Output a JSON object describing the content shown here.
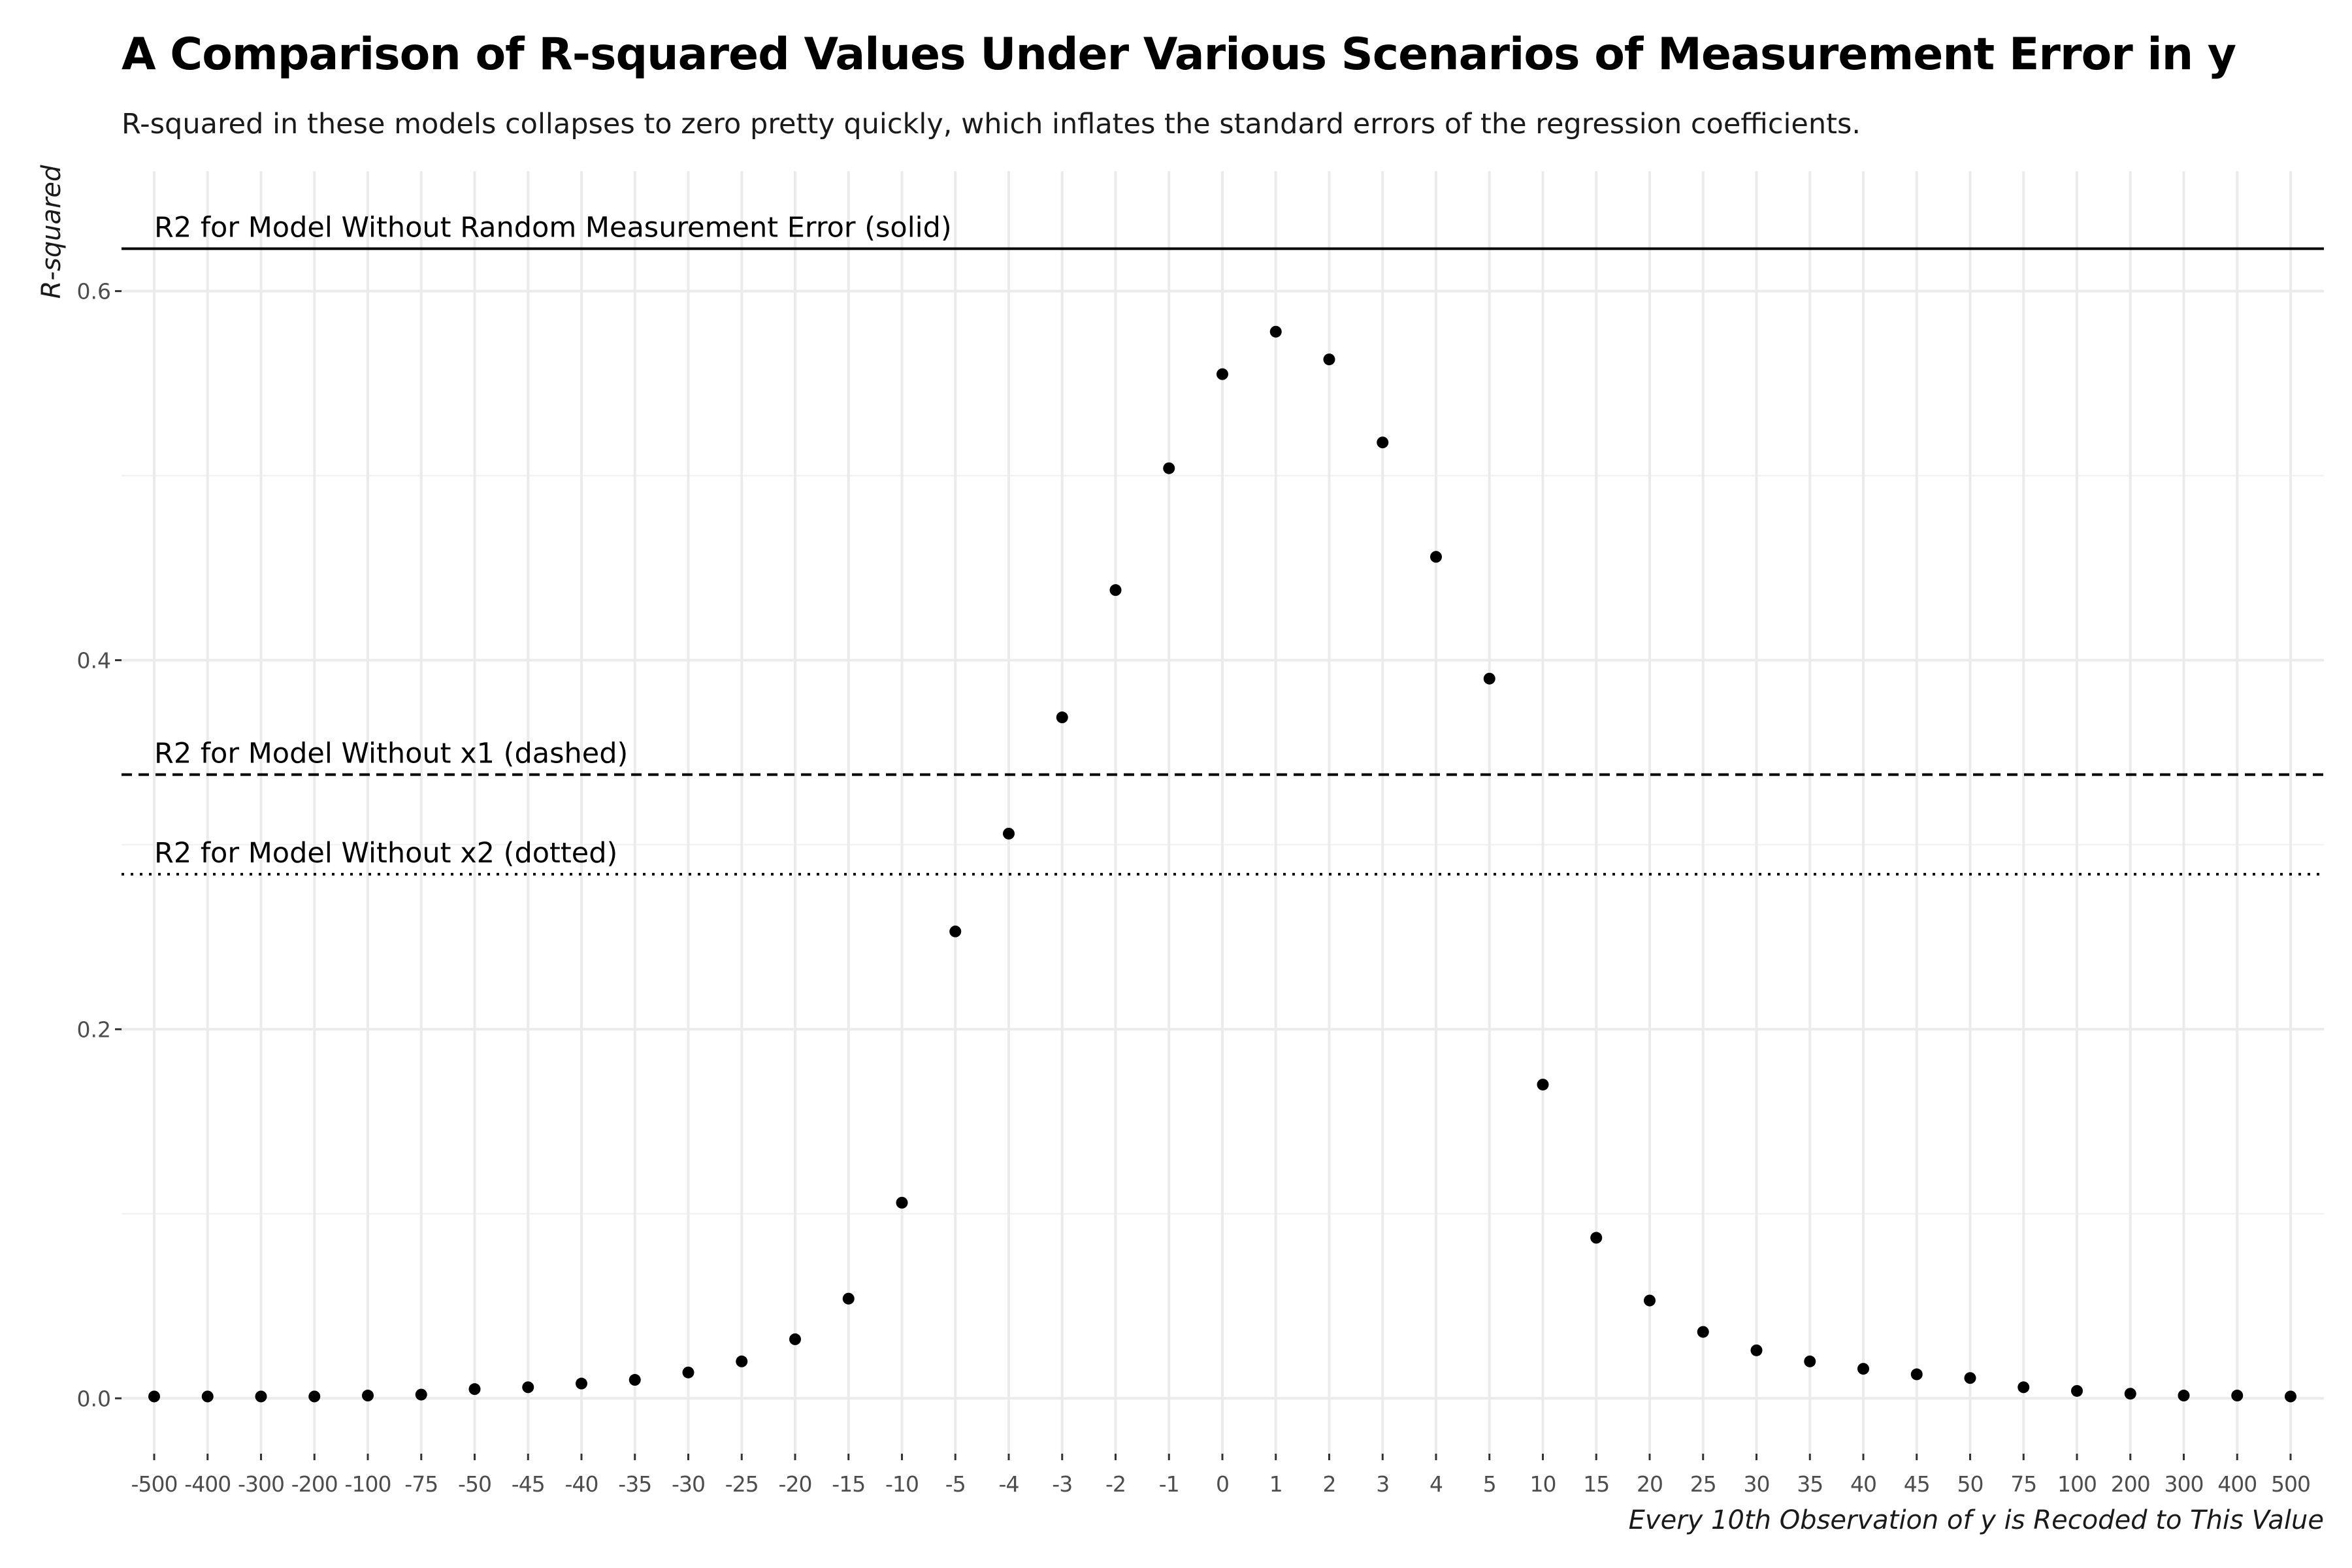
{
  "chart_data": {
    "type": "scatter",
    "title": "A Comparison of R-squared Values Under Various Scenarios of Measurement Error in y",
    "subtitle": "R-squared in these models collapses to zero pretty quickly, which inflates the standard errors of the regression coefficients.",
    "xlabel": "Every 10th Observation of y is Recoded to This Value",
    "ylabel": "R-squared",
    "categories": [
      "-500",
      "-400",
      "-300",
      "-200",
      "-100",
      "-75",
      "-50",
      "-45",
      "-40",
      "-35",
      "-30",
      "-25",
      "-20",
      "-15",
      "-10",
      "-5",
      "-4",
      "-3",
      "-2",
      "-1",
      "0",
      "1",
      "2",
      "3",
      "4",
      "5",
      "10",
      "15",
      "20",
      "25",
      "30",
      "35",
      "40",
      "45",
      "50",
      "75",
      "100",
      "200",
      "300",
      "400",
      "500"
    ],
    "values": [
      0.001,
      0.001,
      0.001,
      0.001,
      0.0015,
      0.002,
      0.005,
      0.006,
      0.008,
      0.01,
      0.014,
      0.02,
      0.032,
      0.054,
      0.106,
      0.253,
      0.306,
      0.369,
      0.438,
      0.504,
      0.555,
      0.578,
      0.563,
      0.518,
      0.456,
      0.39,
      0.17,
      0.087,
      0.053,
      0.036,
      0.026,
      0.02,
      0.016,
      0.013,
      0.011,
      0.006,
      0.004,
      0.0025,
      0.0015,
      0.0015,
      0.001
    ],
    "yticks": [
      0.0,
      0.2,
      0.4,
      0.6
    ],
    "ytick_labels": [
      "0.0",
      "0.2",
      "0.4",
      "0.6"
    ],
    "ylim": [
      -0.03,
      0.665
    ],
    "grid": true,
    "reference_lines": [
      {
        "label": "R2 for Model Without Random Measurement Error (solid)",
        "value": 0.623,
        "style": "solid"
      },
      {
        "label": "R2 for Model Without x1 (dashed)",
        "value": 0.338,
        "style": "dashed"
      },
      {
        "label": "R2 for Model Without x2 (dotted)",
        "value": 0.284,
        "style": "dotted"
      }
    ]
  }
}
